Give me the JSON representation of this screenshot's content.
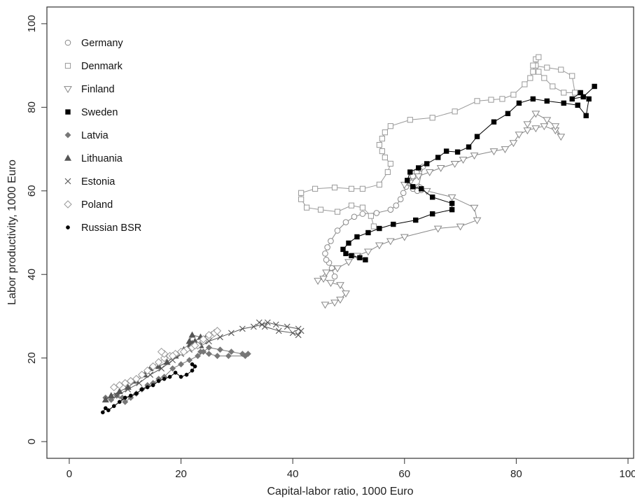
{
  "chart_data": {
    "type": "scatter",
    "title": "",
    "xlabel": "Capital-labor ratio, 1000 Euro",
    "ylabel": "Labor productivity, 1000 Euro",
    "xlim": [
      -4,
      101
    ],
    "ylim": [
      -4,
      104
    ],
    "xticks": [
      0,
      20,
      40,
      60,
      80,
      100
    ],
    "yticks": [
      0,
      20,
      40,
      60,
      80,
      100
    ],
    "grid": false,
    "legend": "top-left",
    "series": [
      {
        "name": "Germany",
        "marker": "circle-open",
        "color": "#888888",
        "points": [
          [
            47.5,
            39.5
          ],
          [
            47.0,
            41.5
          ],
          [
            46.5,
            42.8
          ],
          [
            46.0,
            43.5
          ],
          [
            45.8,
            45.0
          ],
          [
            46.2,
            46.5
          ],
          [
            46.8,
            48.0
          ],
          [
            48.0,
            50.5
          ],
          [
            49.5,
            52.5
          ],
          [
            51.0,
            53.8
          ],
          [
            52.5,
            54.5
          ],
          [
            55.0,
            54.7
          ],
          [
            57.5,
            55.5
          ],
          [
            58.5,
            56.5
          ],
          [
            59.3,
            58.0
          ],
          [
            59.8,
            59.5
          ],
          [
            60.3,
            61.0
          ],
          [
            60.8,
            62.5
          ],
          [
            61.5,
            63.5
          ],
          [
            62.2,
            64.5
          ],
          [
            62.8,
            65.3
          ],
          [
            63.3,
            65.8
          ],
          [
            62.5,
            61.0
          ],
          [
            61.5,
            60.5
          ],
          [
            62.8,
            60.8
          ],
          [
            63.0,
            60.2
          ],
          [
            62.3,
            60.0
          ]
        ]
      },
      {
        "name": "Denmark",
        "marker": "square-open",
        "color": "#999999",
        "points": [
          [
            54.5,
            51.5
          ],
          [
            54.0,
            54.0
          ],
          [
            52.5,
            56.0
          ],
          [
            50.5,
            56.5
          ],
          [
            48.0,
            55.0
          ],
          [
            45.0,
            55.5
          ],
          [
            42.5,
            56.0
          ],
          [
            41.5,
            58.0
          ],
          [
            41.5,
            59.5
          ],
          [
            44.0,
            60.5
          ],
          [
            47.5,
            60.8
          ],
          [
            50.5,
            60.5
          ],
          [
            52.5,
            60.5
          ],
          [
            55.5,
            61.5
          ],
          [
            57.0,
            64.5
          ],
          [
            57.5,
            66.5
          ],
          [
            56.5,
            68.0
          ],
          [
            56.0,
            69.5
          ],
          [
            55.5,
            71.0
          ],
          [
            56.0,
            72.5
          ],
          [
            56.5,
            74.0
          ],
          [
            57.5,
            75.5
          ],
          [
            61.0,
            77.0
          ],
          [
            65.0,
            77.5
          ],
          [
            69.0,
            79.0
          ],
          [
            73.0,
            81.5
          ],
          [
            75.5,
            81.8
          ],
          [
            77.5,
            82.0
          ],
          [
            79.5,
            83.0
          ],
          [
            81.5,
            85.5
          ],
          [
            82.5,
            87.0
          ],
          [
            83.0,
            88.5
          ],
          [
            83.5,
            91.5
          ],
          [
            84.0,
            92.0
          ],
          [
            83.5,
            90.0
          ],
          [
            84.0,
            88.5
          ],
          [
            85.0,
            87.0
          ],
          [
            86.5,
            85.0
          ],
          [
            88.5,
            83.5
          ],
          [
            90.5,
            83.5
          ],
          [
            90.0,
            87.5
          ],
          [
            88.0,
            89.0
          ],
          [
            85.5,
            89.5
          ],
          [
            83.0,
            90.0
          ]
        ]
      },
      {
        "name": "Finland",
        "marker": "triangle-down-open",
        "color": "#888888",
        "points": [
          [
            45.8,
            32.8
          ],
          [
            47.5,
            33.3
          ],
          [
            48.5,
            34.0
          ],
          [
            49.5,
            35.5
          ],
          [
            48.5,
            37.5
          ],
          [
            46.8,
            38.0
          ],
          [
            45.5,
            39.0
          ],
          [
            44.5,
            38.5
          ],
          [
            46.0,
            40.5
          ],
          [
            48.0,
            41.5
          ],
          [
            50.0,
            43.0
          ],
          [
            51.5,
            44.5
          ],
          [
            53.5,
            45.5
          ],
          [
            55.5,
            47.0
          ],
          [
            57.5,
            48.0
          ],
          [
            60.0,
            49.0
          ],
          [
            66.0,
            51.0
          ],
          [
            70.0,
            51.5
          ],
          [
            73.0,
            53.0
          ],
          [
            72.5,
            56.0
          ],
          [
            68.5,
            58.5
          ],
          [
            64.0,
            60.0
          ],
          [
            60.0,
            61.5
          ],
          [
            61.0,
            62.0
          ],
          [
            62.5,
            63.5
          ],
          [
            64.5,
            64.5
          ],
          [
            66.5,
            65.5
          ],
          [
            69.0,
            66.5
          ],
          [
            70.5,
            67.5
          ],
          [
            72.5,
            68.5
          ],
          [
            76.0,
            69.5
          ],
          [
            78.0,
            70.0
          ],
          [
            79.5,
            71.5
          ],
          [
            80.5,
            73.5
          ],
          [
            82.0,
            74.5
          ],
          [
            83.5,
            75.0
          ],
          [
            85.0,
            75.5
          ],
          [
            87.0,
            74.5
          ],
          [
            88.0,
            73.0
          ],
          [
            87.0,
            75.5
          ],
          [
            85.5,
            77.0
          ],
          [
            83.5,
            78.5
          ],
          [
            82.0,
            76.0
          ]
        ]
      },
      {
        "name": "Sweden",
        "marker": "square-filled",
        "color": "#000000",
        "points": [
          [
            53.0,
            43.5
          ],
          [
            52.0,
            44.0
          ],
          [
            50.5,
            44.5
          ],
          [
            49.5,
            45.0
          ],
          [
            49.0,
            46.0
          ],
          [
            50.0,
            47.5
          ],
          [
            51.5,
            49.0
          ],
          [
            53.5,
            50.0
          ],
          [
            55.5,
            51.0
          ],
          [
            58.0,
            52.0
          ],
          [
            62.0,
            53.0
          ],
          [
            65.0,
            54.5
          ],
          [
            68.5,
            55.5
          ],
          [
            68.5,
            57.0
          ],
          [
            65.0,
            58.5
          ],
          [
            63.0,
            60.5
          ],
          [
            61.5,
            61.0
          ],
          [
            60.5,
            62.5
          ],
          [
            61.0,
            64.5
          ],
          [
            62.5,
            65.5
          ],
          [
            64.0,
            66.5
          ],
          [
            66.0,
            68.0
          ],
          [
            67.5,
            69.5
          ],
          [
            69.5,
            69.3
          ],
          [
            71.5,
            70.5
          ],
          [
            73.0,
            73.0
          ],
          [
            76.0,
            76.5
          ],
          [
            78.5,
            78.5
          ],
          [
            80.5,
            81.0
          ],
          [
            83.0,
            82.0
          ],
          [
            85.5,
            81.5
          ],
          [
            88.5,
            81.0
          ],
          [
            91.0,
            80.5
          ],
          [
            92.5,
            78.0
          ],
          [
            93.0,
            82.0
          ],
          [
            91.5,
            83.5
          ],
          [
            90.0,
            82.0
          ],
          [
            92.0,
            82.5
          ],
          [
            94.0,
            85.0
          ]
        ]
      },
      {
        "name": "Latvia",
        "marker": "diamond-filled",
        "color": "#777777",
        "points": [
          [
            6.5,
            10.5
          ],
          [
            7.5,
            10.0
          ],
          [
            8.5,
            11.0
          ],
          [
            9.5,
            10.5
          ],
          [
            10.0,
            9.5
          ],
          [
            11.0,
            10.5
          ],
          [
            12.0,
            11.5
          ],
          [
            13.0,
            12.5
          ],
          [
            14.0,
            13.5
          ],
          [
            15.0,
            14.0
          ],
          [
            16.0,
            15.0
          ],
          [
            17.0,
            15.5
          ],
          [
            18.5,
            17.5
          ],
          [
            20.0,
            18.5
          ],
          [
            21.5,
            19.5
          ],
          [
            23.0,
            20.5
          ],
          [
            24.0,
            21.5
          ],
          [
            25.0,
            22.5
          ],
          [
            27.0,
            22.0
          ],
          [
            29.0,
            21.5
          ],
          [
            31.0,
            21.0
          ],
          [
            32.0,
            21.0
          ],
          [
            31.5,
            20.5
          ],
          [
            28.5,
            20.5
          ],
          [
            26.5,
            20.5
          ],
          [
            25.0,
            21.0
          ],
          [
            23.5,
            21.5
          ]
        ]
      },
      {
        "name": "Lithuania",
        "marker": "triangle-up-filled",
        "color": "#555555",
        "points": [
          [
            6.5,
            10.0
          ],
          [
            7.5,
            11.0
          ],
          [
            9.0,
            12.0
          ],
          [
            10.5,
            13.0
          ],
          [
            12.0,
            14.5
          ],
          [
            13.5,
            16.0
          ],
          [
            14.5,
            17.5
          ],
          [
            16.0,
            18.0
          ],
          [
            17.5,
            19.0
          ],
          [
            19.0,
            20.5
          ],
          [
            20.5,
            22.0
          ],
          [
            21.5,
            23.0
          ],
          [
            22.5,
            24.0
          ],
          [
            23.5,
            25.0
          ],
          [
            22.0,
            25.5
          ],
          [
            21.5,
            24.0
          ],
          [
            22.0,
            23.5
          ],
          [
            23.5,
            23.0
          ],
          [
            24.0,
            24.0
          ],
          [
            24.5,
            25.0
          ]
        ]
      },
      {
        "name": "Estonia",
        "marker": "x",
        "color": "#555555",
        "points": [
          [
            8.5,
            11.0
          ],
          [
            10.5,
            12.5
          ],
          [
            12.5,
            14.0
          ],
          [
            14.5,
            16.0
          ],
          [
            16.5,
            17.5
          ],
          [
            18.5,
            19.5
          ],
          [
            20.0,
            21.0
          ],
          [
            21.5,
            22.0
          ],
          [
            23.0,
            23.0
          ],
          [
            25.0,
            24.0
          ],
          [
            27.0,
            25.0
          ],
          [
            29.0,
            26.0
          ],
          [
            31.0,
            27.0
          ],
          [
            33.0,
            27.5
          ],
          [
            34.5,
            28.0
          ],
          [
            35.5,
            28.5
          ],
          [
            37.0,
            28.0
          ],
          [
            39.0,
            27.5
          ],
          [
            41.0,
            27.0
          ],
          [
            41.5,
            26.5
          ],
          [
            41.0,
            25.5
          ],
          [
            40.0,
            26.0
          ],
          [
            37.5,
            26.5
          ],
          [
            35.0,
            27.5
          ],
          [
            34.0,
            28.5
          ]
        ]
      },
      {
        "name": "Poland",
        "marker": "diamond-open",
        "color": "#999999",
        "points": [
          [
            8.0,
            13.0
          ],
          [
            9.0,
            13.5
          ],
          [
            10.0,
            14.0
          ],
          [
            11.0,
            14.5
          ],
          [
            12.0,
            15.0
          ],
          [
            13.0,
            16.0
          ],
          [
            14.0,
            17.0
          ],
          [
            15.0,
            18.0
          ],
          [
            16.0,
            19.0
          ],
          [
            17.0,
            20.0
          ],
          [
            18.0,
            20.5
          ],
          [
            19.0,
            21.0
          ],
          [
            20.0,
            21.5
          ],
          [
            21.0,
            22.0
          ],
          [
            22.0,
            22.5
          ],
          [
            23.0,
            23.0
          ],
          [
            24.0,
            24.0
          ],
          [
            25.0,
            25.0
          ],
          [
            25.5,
            25.5
          ],
          [
            26.0,
            26.0
          ],
          [
            26.5,
            26.5
          ],
          [
            25.0,
            25.5
          ],
          [
            24.0,
            24.5
          ],
          [
            22.5,
            23.0
          ],
          [
            20.5,
            21.5
          ],
          [
            18.5,
            20.5
          ],
          [
            17.0,
            21.0
          ],
          [
            16.5,
            21.5
          ]
        ]
      },
      {
        "name": "Russian BSR",
        "marker": "dot",
        "color": "#000000",
        "points": [
          [
            6.0,
            7.0
          ],
          [
            6.5,
            8.0
          ],
          [
            7.0,
            7.5
          ],
          [
            8.0,
            8.5
          ],
          [
            9.0,
            9.5
          ],
          [
            10.0,
            10.5
          ],
          [
            11.0,
            11.0
          ],
          [
            12.0,
            11.5
          ],
          [
            13.0,
            12.5
          ],
          [
            14.0,
            13.0
          ],
          [
            15.0,
            13.5
          ],
          [
            16.0,
            14.5
          ],
          [
            17.0,
            15.0
          ],
          [
            18.0,
            15.5
          ],
          [
            19.0,
            16.5
          ],
          [
            20.0,
            15.5
          ],
          [
            21.0,
            16.0
          ],
          [
            22.0,
            17.0
          ],
          [
            22.5,
            18.0
          ],
          [
            22.0,
            18.5
          ]
        ]
      }
    ]
  }
}
